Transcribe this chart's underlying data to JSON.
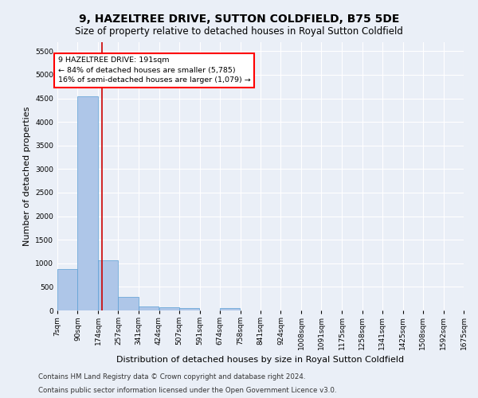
{
  "title": "9, HAZELTREE DRIVE, SUTTON COLDFIELD, B75 5DE",
  "subtitle": "Size of property relative to detached houses in Royal Sutton Coldfield",
  "xlabel": "Distribution of detached houses by size in Royal Sutton Coldfield",
  "ylabel": "Number of detached properties",
  "footnote1": "Contains HM Land Registry data © Crown copyright and database right 2024.",
  "footnote2": "Contains public sector information licensed under the Open Government Licence v3.0.",
  "annotation_line1": "9 HAZELTREE DRIVE: 191sqm",
  "annotation_line2": "← 84% of detached houses are smaller (5,785)",
  "annotation_line3": "16% of semi-detached houses are larger (1,079) →",
  "bar_color": "#aec6e8",
  "bar_edge_color": "#5a9fd4",
  "redline_color": "#cc0000",
  "redline_x": 191,
  "bins": [
    7,
    90,
    174,
    257,
    341,
    424,
    507,
    591,
    674,
    758,
    841,
    924,
    1008,
    1091,
    1175,
    1258,
    1341,
    1425,
    1508,
    1592,
    1675
  ],
  "counts": [
    870,
    4550,
    1060,
    285,
    90,
    75,
    55,
    0,
    45,
    0,
    0,
    0,
    0,
    0,
    0,
    0,
    0,
    0,
    0,
    0
  ],
  "ylim": [
    0,
    5700
  ],
  "yticks": [
    0,
    500,
    1000,
    1500,
    2000,
    2500,
    3000,
    3500,
    4000,
    4500,
    5000,
    5500
  ],
  "bg_color": "#eaeff7",
  "plot_bg_color": "#eaeff7",
  "grid_color": "#ffffff",
  "title_fontsize": 10,
  "subtitle_fontsize": 8.5,
  "tick_fontsize": 6.5,
  "label_fontsize": 8,
  "footnote_fontsize": 6.2
}
